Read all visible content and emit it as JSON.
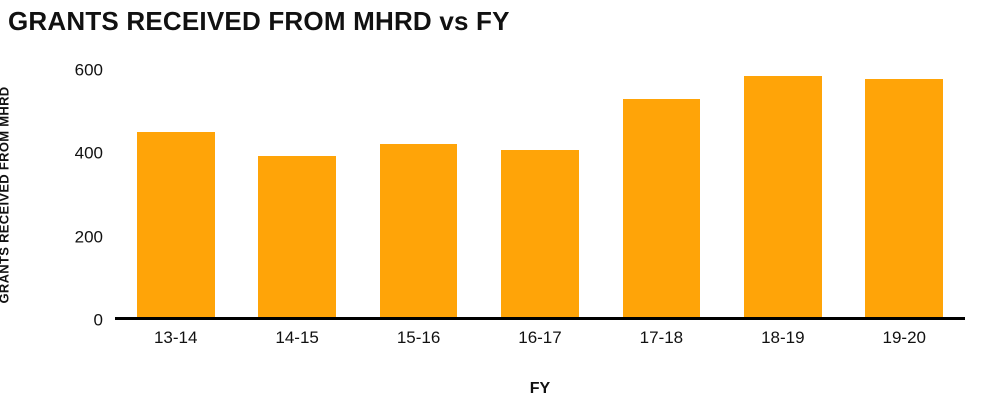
{
  "chart_data": {
    "type": "bar",
    "title": "GRANTS RECEIVED FROM MHRD vs FY",
    "xlabel": "FY",
    "ylabel": "GRANTS RECEIVED FROM MHRD",
    "categories": [
      "13-14",
      "14-15",
      "15-16",
      "16-17",
      "17-18",
      "18-19",
      "19-20"
    ],
    "values": [
      450,
      390,
      420,
      405,
      530,
      585,
      578
    ],
    "ylim": [
      0,
      600
    ],
    "yticks": [
      0,
      200,
      400,
      600
    ],
    "bar_color": "#FFA408",
    "axis_color": "#000000",
    "grid": false,
    "legend": false
  }
}
